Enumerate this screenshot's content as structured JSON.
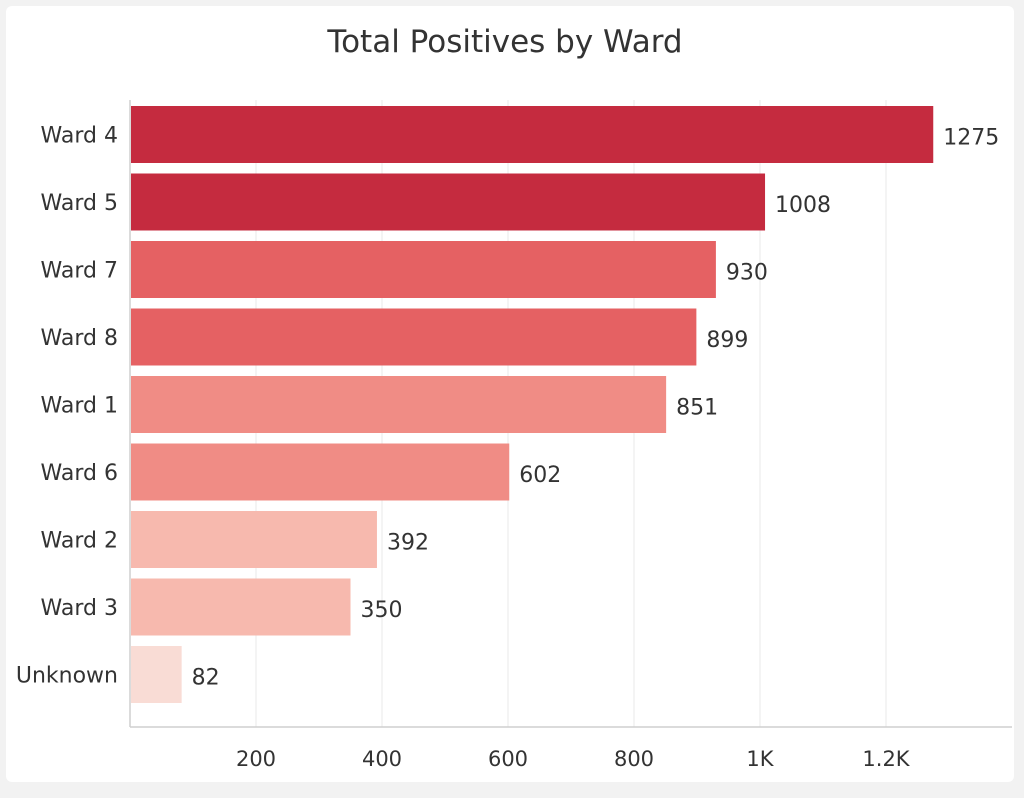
{
  "chart_data": {
    "type": "bar",
    "orientation": "horizontal",
    "title": "Total Positives by Ward",
    "xlabel": "",
    "ylabel": "",
    "categories": [
      "Ward 4",
      "Ward 5",
      "Ward 7",
      "Ward 8",
      "Ward 1",
      "Ward 6",
      "Ward 2",
      "Ward 3",
      "Unknown"
    ],
    "values": [
      1275,
      1008,
      930,
      899,
      851,
      602,
      392,
      350,
      82
    ],
    "value_labels": [
      "1275",
      "1008",
      "930",
      "899",
      "851",
      "602",
      "392",
      "350",
      "82"
    ],
    "bar_colors": [
      "#c52b3f",
      "#c52b3f",
      "#e56163",
      "#e56163",
      "#f08c85",
      "#f08c85",
      "#f7b9ae",
      "#f7b9ae",
      "#f9dcd5"
    ],
    "xlim": [
      0,
      1400
    ],
    "x_ticks": [
      200,
      400,
      600,
      800,
      1000,
      1200
    ],
    "x_tick_labels": [
      "200",
      "400",
      "600",
      "800",
      "1K",
      "1.2K"
    ],
    "grid": true,
    "legend": "none"
  }
}
